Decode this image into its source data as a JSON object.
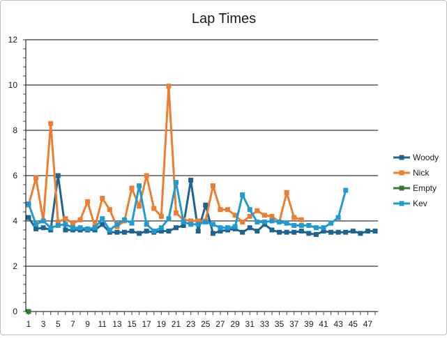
{
  "chart_data": {
    "type": "line",
    "title": "Lap Times",
    "xlabel": "",
    "ylabel": "",
    "ylim": [
      0,
      12
    ],
    "yticks": [
      0,
      2,
      4,
      6,
      8,
      10,
      12
    ],
    "xlim": [
      1,
      48
    ],
    "xtick_labels": [
      "1",
      "3",
      "5",
      "7",
      "9",
      "11",
      "13",
      "15",
      "17",
      "19",
      "21",
      "23",
      "25",
      "27",
      "29",
      "31",
      "33",
      "35",
      "37",
      "39",
      "41",
      "43",
      "45",
      "47"
    ],
    "grid": "horizontal",
    "legend_position": "right",
    "series": [
      {
        "name": "Woody",
        "color": "#1f6391",
        "x": [
          1,
          2,
          3,
          4,
          5,
          6,
          7,
          8,
          9,
          10,
          11,
          12,
          13,
          14,
          15,
          16,
          17,
          18,
          19,
          20,
          21,
          22,
          23,
          24,
          25,
          26,
          27,
          28,
          29,
          30,
          31,
          32,
          33,
          34,
          35,
          36,
          37,
          38,
          39,
          40,
          41,
          42,
          43,
          44,
          45,
          46,
          47,
          48
        ],
        "y": [
          4.15,
          3.65,
          3.7,
          3.6,
          6.0,
          3.6,
          3.6,
          3.6,
          3.6,
          3.6,
          3.85,
          3.5,
          3.5,
          3.5,
          3.55,
          3.45,
          3.55,
          3.5,
          3.55,
          3.55,
          3.7,
          3.8,
          5.8,
          3.55,
          4.7,
          3.45,
          3.55,
          3.6,
          3.65,
          3.5,
          3.7,
          3.55,
          3.85,
          3.6,
          3.5,
          3.5,
          3.5,
          3.55,
          3.45,
          3.4,
          3.55,
          3.5,
          3.5,
          3.5,
          3.55,
          3.45,
          3.55,
          3.55
        ]
      },
      {
        "name": "Nick",
        "color": "#ed7d31",
        "x": [
          1,
          2,
          3,
          4,
          5,
          6,
          7,
          8,
          9,
          10,
          11,
          12,
          13,
          14,
          15,
          16,
          17,
          18,
          19,
          20,
          21,
          22,
          23,
          24,
          25,
          26,
          27,
          28,
          29,
          30,
          31,
          32,
          33,
          34,
          35,
          36,
          37,
          38
        ],
        "y": [
          4.7,
          5.9,
          4.0,
          8.3,
          3.95,
          4.1,
          3.9,
          4.05,
          4.85,
          3.75,
          5.0,
          4.5,
          3.75,
          4.0,
          5.45,
          4.65,
          6.0,
          4.55,
          4.2,
          9.95,
          4.35,
          4.05,
          4.0,
          4.0,
          4.0,
          5.55,
          4.5,
          4.5,
          4.25,
          3.95,
          4.2,
          4.45,
          4.25,
          4.2,
          3.95,
          5.25,
          4.15,
          4.05
        ]
      },
      {
        "name": "Empty",
        "color": "#2e7d32",
        "x": [
          1
        ],
        "y": [
          0
        ]
      },
      {
        "name": "Kev",
        "color": "#1f9bd1",
        "x": [
          1,
          2,
          3,
          4,
          5,
          6,
          7,
          8,
          9,
          10,
          11,
          12,
          13,
          14,
          15,
          16,
          17,
          18,
          19,
          20,
          21,
          22,
          23,
          24,
          25,
          26,
          27,
          28,
          29,
          30,
          31,
          32,
          33,
          34,
          35,
          36,
          37,
          38,
          39,
          40,
          41,
          42,
          43,
          44
        ],
        "y": [
          4.75,
          3.85,
          4.0,
          3.7,
          3.8,
          3.85,
          3.7,
          3.7,
          3.65,
          3.7,
          4.1,
          3.6,
          3.85,
          4.05,
          3.9,
          5.55,
          3.85,
          3.55,
          3.7,
          4.1,
          5.7,
          3.95,
          3.85,
          3.85,
          3.95,
          3.85,
          3.7,
          3.7,
          3.75,
          5.15,
          4.5,
          3.95,
          3.95,
          4.0,
          3.95,
          3.9,
          3.8,
          3.8,
          3.8,
          3.7,
          3.7,
          3.9,
          4.15,
          5.35
        ]
      }
    ]
  }
}
